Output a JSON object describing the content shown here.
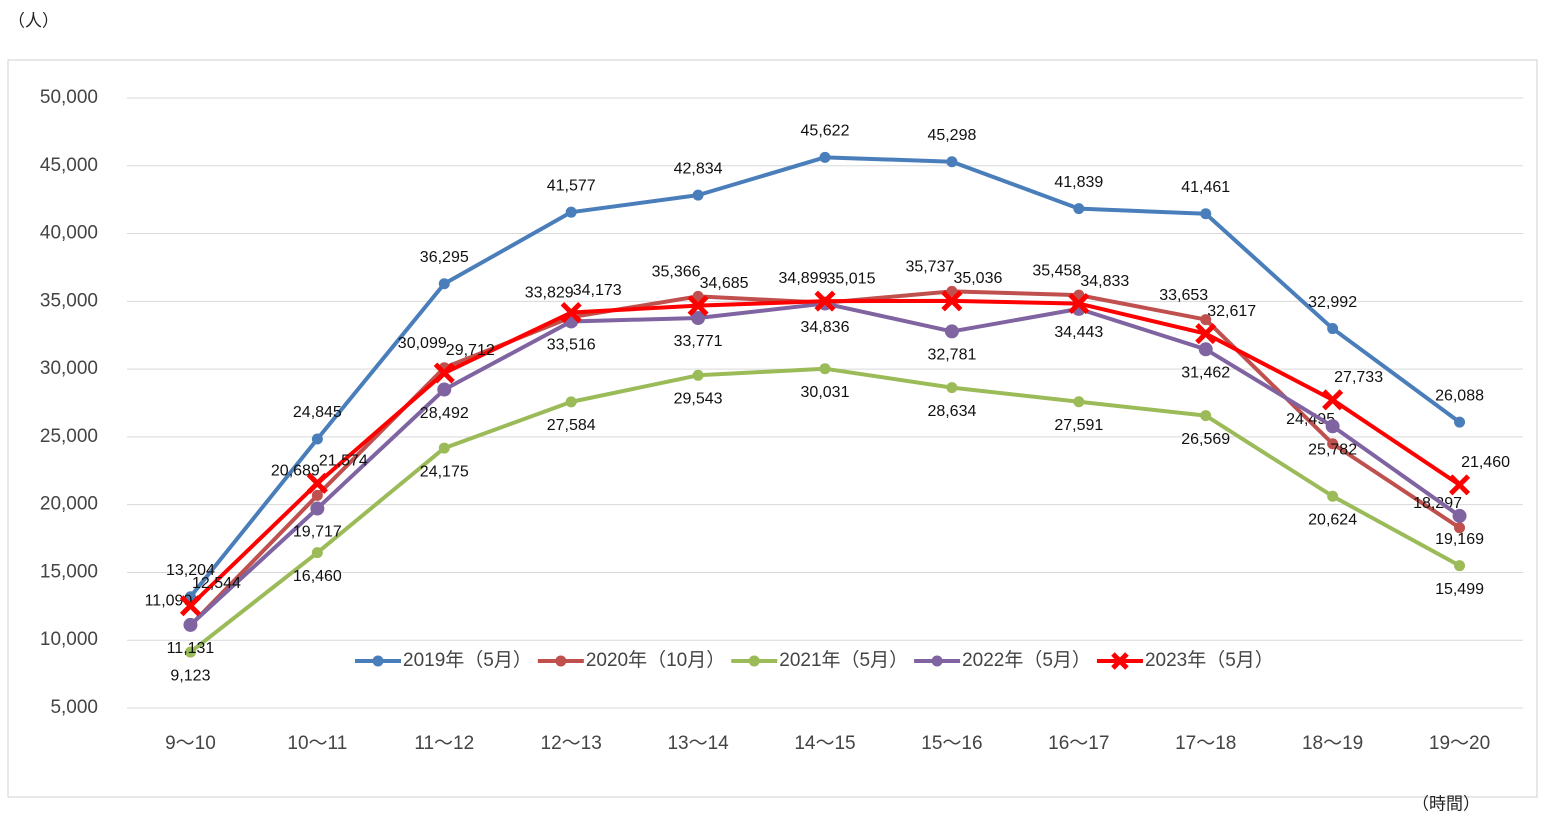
{
  "chart_data": {
    "type": "line",
    "y_unit": "（人）",
    "x_unit": "（時間）",
    "categories": [
      "9～10",
      "10～11",
      "11～12",
      "12～13",
      "13～14",
      "14～15",
      "15～16",
      "16～17",
      "17～18",
      "18～19",
      "19～20"
    ],
    "ylim": [
      5000,
      50000
    ],
    "yticks": [
      {
        "value": 5000,
        "label": "5,000"
      },
      {
        "value": 10000,
        "label": "10,000"
      },
      {
        "value": 15000,
        "label": "15,000"
      },
      {
        "value": 20000,
        "label": "20,000"
      },
      {
        "value": 25000,
        "label": "25,000"
      },
      {
        "value": 30000,
        "label": "30,000"
      },
      {
        "value": 35000,
        "label": "35,000"
      },
      {
        "value": 40000,
        "label": "40,000"
      },
      {
        "value": 45000,
        "label": "45,000"
      },
      {
        "value": 50000,
        "label": "50,000"
      }
    ],
    "grid": true,
    "legend": "bottom",
    "series": [
      {
        "name": "2019年（5月）",
        "color": "#4a7ebb",
        "marker": "circle",
        "values": [
          13204,
          24845,
          36295,
          41577,
          42834,
          45622,
          45298,
          41839,
          41461,
          32992,
          26088
        ],
        "value_labels": [
          "13,204",
          "24,845",
          "36,295",
          "41,577",
          "42,834",
          "45,622",
          "45,298",
          "41,839",
          "41,461",
          "32,992",
          "26,088"
        ]
      },
      {
        "name": "2020年（10月）",
        "color": "#c0504d",
        "marker": "circle",
        "values": [
          11090,
          20689,
          30099,
          33829,
          35366,
          34899,
          35737,
          35458,
          33653,
          24495,
          18297
        ],
        "value_labels": [
          "11,090",
          "20,689",
          "30,099",
          "33,829",
          "35,366",
          "34,899",
          "35,737",
          "35,458",
          "33,653",
          "24,495",
          "18,297"
        ]
      },
      {
        "name": "2021年（5月）",
        "color": "#9bbb59",
        "marker": "circle",
        "values": [
          9123,
          16460,
          24175,
          27584,
          29543,
          30031,
          28634,
          27591,
          26569,
          20624,
          15499
        ],
        "value_labels": [
          "9,123",
          "16,460",
          "24,175",
          "27,584",
          "29,543",
          "30,031",
          "28,634",
          "27,591",
          "26,569",
          "20,624",
          "15,499"
        ]
      },
      {
        "name": "2022年（5月）",
        "color": "#8064a2",
        "marker": "circle",
        "values": [
          11131,
          19717,
          28492,
          33516,
          33771,
          34836,
          32781,
          34443,
          31462,
          25782,
          19169
        ],
        "value_labels": [
          "11,131",
          "19,717",
          "28,492",
          "33,516",
          "33,771",
          "34,836",
          "32,781",
          "34,443",
          "31,462",
          "25,782",
          "19,169"
        ]
      },
      {
        "name": "2023年（5月）",
        "color": "#ff0000",
        "marker": "x",
        "values": [
          12544,
          21574,
          29712,
          34173,
          34685,
          35015,
          35036,
          34833,
          32617,
          27733,
          21460
        ],
        "value_labels": [
          "12,544",
          "21,574",
          "29,712",
          "34,173",
          "34,685",
          "35,015",
          "35,036",
          "34,833",
          "32,617",
          "27,733",
          "21,460"
        ]
      }
    ]
  }
}
